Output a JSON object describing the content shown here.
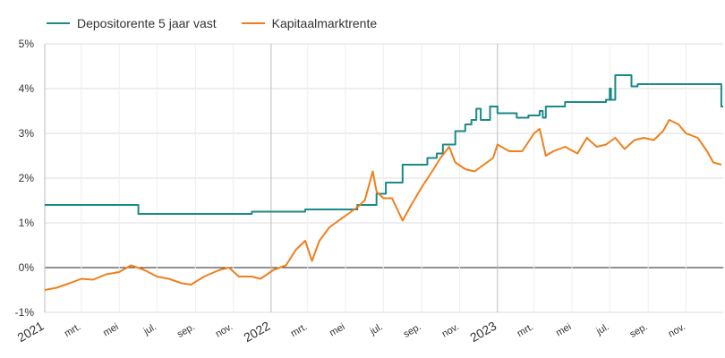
{
  "chart_data": {
    "type": "line",
    "title": "",
    "xlabel": "",
    "ylabel": "",
    "ylim": [
      -1,
      5
    ],
    "y_ticks": [
      "-1%",
      "0%",
      "1%",
      "2%",
      "3%",
      "4%",
      "5%"
    ],
    "x_range": [
      "2021-01-01",
      "2023-12-31"
    ],
    "x_ticks": [
      {
        "date": "2021-01-01",
        "label": "2021"
      },
      {
        "date": "2021-03-01",
        "label": "mrt."
      },
      {
        "date": "2021-05-01",
        "label": "mei"
      },
      {
        "date": "2021-07-01",
        "label": "jul."
      },
      {
        "date": "2021-09-01",
        "label": "sep."
      },
      {
        "date": "2021-11-01",
        "label": "nov."
      },
      {
        "date": "2022-01-01",
        "label": "2022"
      },
      {
        "date": "2022-03-01",
        "label": "mrt."
      },
      {
        "date": "2022-05-01",
        "label": "mei"
      },
      {
        "date": "2022-07-01",
        "label": "jul."
      },
      {
        "date": "2022-09-01",
        "label": "sep."
      },
      {
        "date": "2022-11-01",
        "label": "nov."
      },
      {
        "date": "2023-01-01",
        "label": "2023"
      },
      {
        "date": "2023-03-01",
        "label": "mrt."
      },
      {
        "date": "2023-05-01",
        "label": "mei"
      },
      {
        "date": "2023-07-01",
        "label": "jul."
      },
      {
        "date": "2023-09-01",
        "label": "sep."
      },
      {
        "date": "2023-11-01",
        "label": "nov."
      }
    ],
    "grid": true,
    "legend_position": "top-left",
    "series": [
      {
        "name": "Depositorente 5 jaar vast",
        "color": "#1a8a87",
        "step": true,
        "points": [
          [
            "2021-01-01",
            1.4
          ],
          [
            "2021-06-01",
            1.2
          ],
          [
            "2021-12-01",
            1.25
          ],
          [
            "2022-02-25",
            1.3
          ],
          [
            "2022-05-20",
            1.4
          ],
          [
            "2022-06-20",
            1.65
          ],
          [
            "2022-07-05",
            1.9
          ],
          [
            "2022-08-01",
            2.3
          ],
          [
            "2022-09-10",
            2.45
          ],
          [
            "2022-09-25",
            2.55
          ],
          [
            "2022-10-05",
            2.75
          ],
          [
            "2022-10-25",
            3.05
          ],
          [
            "2022-11-10",
            3.2
          ],
          [
            "2022-11-20",
            3.3
          ],
          [
            "2022-11-28",
            3.55
          ],
          [
            "2022-12-05",
            3.3
          ],
          [
            "2022-12-20",
            3.6
          ],
          [
            "2023-01-01",
            3.45
          ],
          [
            "2023-02-01",
            3.35
          ],
          [
            "2023-02-20",
            3.4
          ],
          [
            "2023-03-10",
            3.5
          ],
          [
            "2023-03-15",
            3.35
          ],
          [
            "2023-03-20",
            3.6
          ],
          [
            "2023-04-01",
            3.6
          ],
          [
            "2023-04-20",
            3.7
          ],
          [
            "2023-06-25",
            3.75
          ],
          [
            "2023-07-01",
            4.0
          ],
          [
            "2023-07-03",
            3.75
          ],
          [
            "2023-07-10",
            4.3
          ],
          [
            "2023-08-05",
            4.05
          ],
          [
            "2023-08-15",
            4.1
          ],
          [
            "2023-12-28",
            3.6
          ]
        ]
      },
      {
        "name": "Kapitaalmarktrente",
        "color": "#f07f1b",
        "step": false,
        "points": [
          [
            "2021-01-01",
            -0.5
          ],
          [
            "2021-01-20",
            -0.45
          ],
          [
            "2021-02-10",
            -0.35
          ],
          [
            "2021-03-01",
            -0.25
          ],
          [
            "2021-03-20",
            -0.27
          ],
          [
            "2021-04-10",
            -0.15
          ],
          [
            "2021-05-01",
            -0.1
          ],
          [
            "2021-05-20",
            0.05
          ],
          [
            "2021-06-10",
            -0.05
          ],
          [
            "2021-07-01",
            -0.2
          ],
          [
            "2021-07-20",
            -0.25
          ],
          [
            "2021-08-10",
            -0.35
          ],
          [
            "2021-08-25",
            -0.38
          ],
          [
            "2021-09-15",
            -0.2
          ],
          [
            "2021-10-10",
            -0.05
          ],
          [
            "2021-10-25",
            0.0
          ],
          [
            "2021-11-10",
            -0.2
          ],
          [
            "2021-12-01",
            -0.2
          ],
          [
            "2021-12-15",
            -0.25
          ],
          [
            "2022-01-05",
            -0.05
          ],
          [
            "2022-01-25",
            0.05
          ],
          [
            "2022-02-10",
            0.4
          ],
          [
            "2022-02-25",
            0.6
          ],
          [
            "2022-03-08",
            0.15
          ],
          [
            "2022-03-20",
            0.6
          ],
          [
            "2022-04-05",
            0.9
          ],
          [
            "2022-04-20",
            1.05
          ],
          [
            "2022-05-05",
            1.2
          ],
          [
            "2022-05-20",
            1.35
          ],
          [
            "2022-06-01",
            1.5
          ],
          [
            "2022-06-14",
            2.15
          ],
          [
            "2022-06-20",
            1.7
          ],
          [
            "2022-07-01",
            1.55
          ],
          [
            "2022-07-15",
            1.55
          ],
          [
            "2022-08-01",
            1.05
          ],
          [
            "2022-08-15",
            1.4
          ],
          [
            "2022-09-01",
            1.8
          ],
          [
            "2022-09-20",
            2.2
          ],
          [
            "2022-10-01",
            2.45
          ],
          [
            "2022-10-15",
            2.7
          ],
          [
            "2022-10-25",
            2.35
          ],
          [
            "2022-11-10",
            2.2
          ],
          [
            "2022-11-25",
            2.15
          ],
          [
            "2022-12-10",
            2.3
          ],
          [
            "2022-12-25",
            2.45
          ],
          [
            "2023-01-01",
            2.75
          ],
          [
            "2023-01-20",
            2.6
          ],
          [
            "2023-02-10",
            2.6
          ],
          [
            "2023-03-01",
            3.0
          ],
          [
            "2023-03-10",
            3.1
          ],
          [
            "2023-03-20",
            2.5
          ],
          [
            "2023-04-01",
            2.6
          ],
          [
            "2023-04-20",
            2.7
          ],
          [
            "2023-05-10",
            2.55
          ],
          [
            "2023-05-25",
            2.9
          ],
          [
            "2023-06-10",
            2.7
          ],
          [
            "2023-06-25",
            2.75
          ],
          [
            "2023-07-10",
            2.9
          ],
          [
            "2023-07-25",
            2.65
          ],
          [
            "2023-08-10",
            2.85
          ],
          [
            "2023-08-25",
            2.9
          ],
          [
            "2023-09-10",
            2.85
          ],
          [
            "2023-09-25",
            3.05
          ],
          [
            "2023-10-05",
            3.3
          ],
          [
            "2023-10-20",
            3.2
          ],
          [
            "2023-11-01",
            3.0
          ],
          [
            "2023-11-20",
            2.9
          ],
          [
            "2023-12-05",
            2.6
          ],
          [
            "2023-12-15",
            2.35
          ],
          [
            "2023-12-28",
            2.3
          ]
        ]
      }
    ]
  }
}
